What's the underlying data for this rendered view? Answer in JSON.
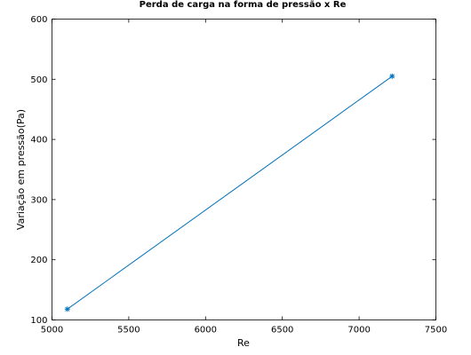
{
  "chart_data": {
    "type": "line",
    "title": "Perda de carga na forma de pressão x Re",
    "xlabel": "Re",
    "ylabel": "Variação em pressão(Pa)",
    "xlim": [
      5000,
      7500
    ],
    "ylim": [
      100,
      600
    ],
    "x_ticks": [
      "5000",
      "5500",
      "6000",
      "6500",
      "7000",
      "7500"
    ],
    "y_ticks": [
      "100",
      "200",
      "300",
      "400",
      "500",
      "600"
    ],
    "grid": false,
    "marker": "asterisk",
    "color": "#0072bd",
    "series": [
      {
        "x": [
          5100,
          7215
        ],
        "y": [
          118,
          505
        ]
      }
    ]
  }
}
